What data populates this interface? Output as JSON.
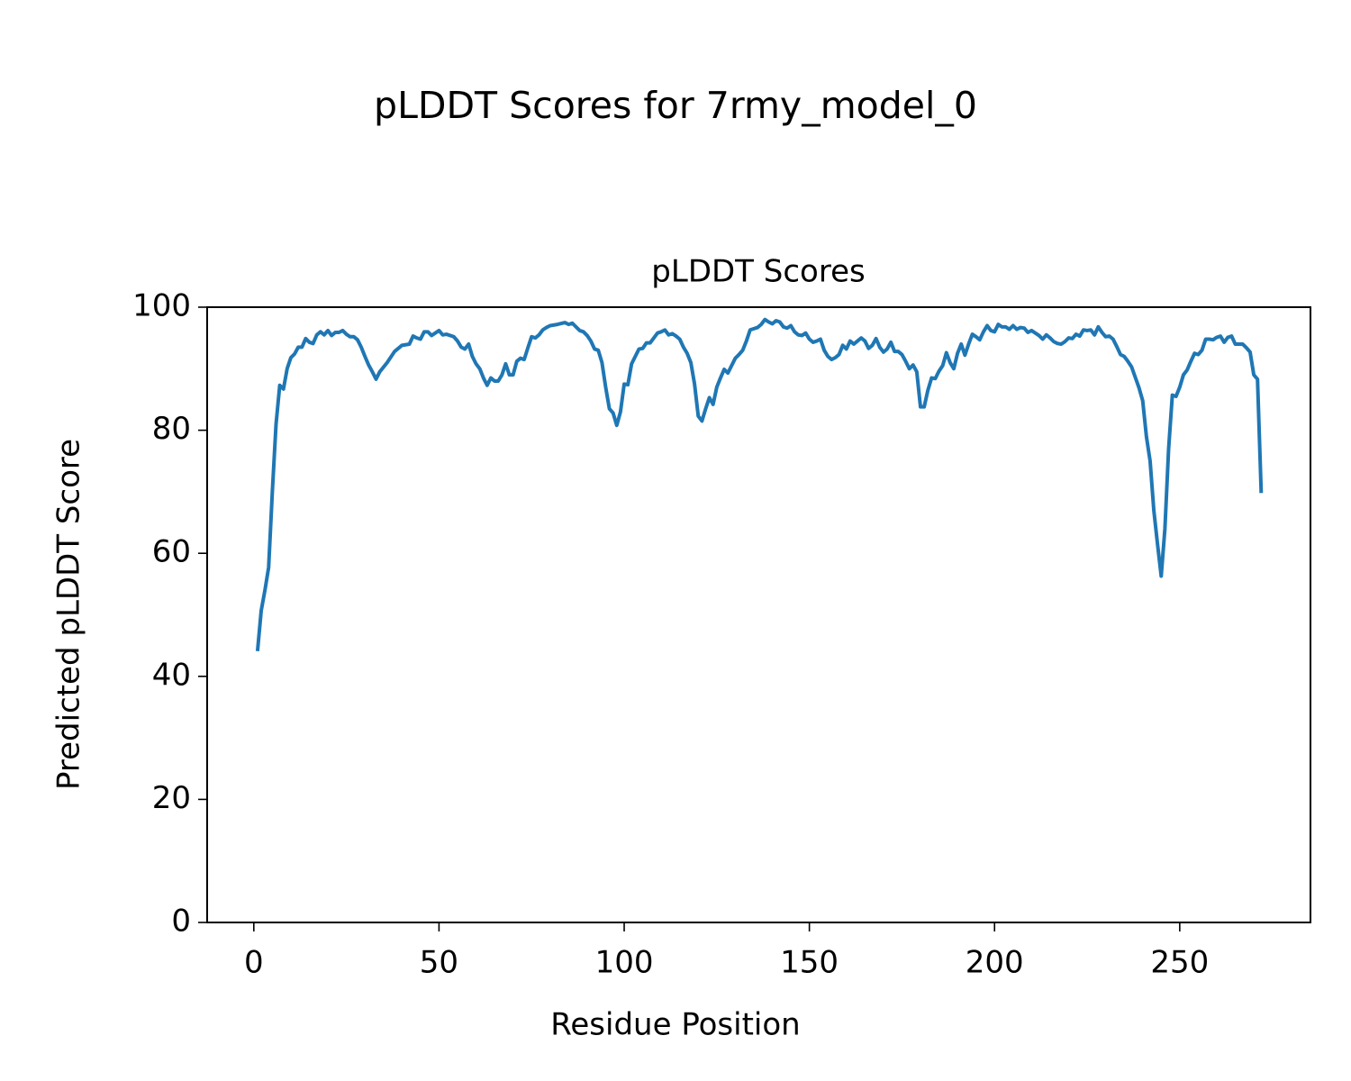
{
  "chart_data": {
    "type": "line",
    "suptitle": "pLDDT Scores for 7rmy_model_0",
    "title": "pLDDT Scores",
    "xlabel": "Residue Position",
    "ylabel": "Predicted pLDDT Score",
    "xlim": [
      -12.6,
      285.3
    ],
    "ylim": [
      0,
      100
    ],
    "xticks": [
      0,
      50,
      100,
      150,
      200,
      250
    ],
    "yticks": [
      0,
      20,
      40,
      60,
      80,
      100
    ],
    "grid": false,
    "series": [
      {
        "name": "pLDDT",
        "color": "#1f77b4",
        "x": [
          1,
          2,
          3,
          4,
          5,
          6,
          7,
          8,
          9,
          10,
          11,
          12,
          13,
          14,
          15,
          16,
          17,
          18,
          19,
          20,
          21,
          22,
          23,
          24,
          25,
          26,
          27,
          28,
          29,
          30,
          31,
          32,
          33,
          34,
          36,
          38,
          40,
          42,
          43,
          44,
          45,
          46,
          47,
          48,
          49,
          50,
          51,
          52,
          54,
          55,
          56,
          57,
          58,
          59,
          60,
          61,
          62,
          63,
          64,
          65,
          66,
          67,
          68,
          69,
          70,
          71,
          72,
          73,
          74,
          75,
          76,
          77,
          78,
          79,
          80,
          82,
          84,
          85,
          86,
          87,
          88,
          89,
          90,
          91,
          92,
          93,
          94,
          95,
          96,
          97,
          98,
          99,
          100,
          101,
          102,
          103,
          104,
          105,
          106,
          107,
          108,
          109,
          110,
          111,
          112,
          113,
          114,
          115,
          116,
          117,
          118,
          119,
          120,
          121,
          122,
          123,
          124,
          125,
          126,
          127,
          128,
          129,
          130,
          131,
          132,
          133,
          134,
          135,
          136,
          137,
          138,
          139,
          140,
          141,
          142,
          143,
          144,
          145,
          146,
          147,
          148,
          149,
          150,
          151,
          152,
          153,
          154,
          155,
          156,
          157,
          158,
          159,
          160,
          161,
          162,
          163,
          164,
          165,
          166,
          167,
          168,
          169,
          170,
          171,
          172,
          173,
          174,
          175,
          176,
          177,
          178,
          179,
          180,
          181,
          182,
          183,
          184,
          185,
          186,
          187,
          188,
          189,
          190,
          191,
          192,
          193,
          194,
          195,
          196,
          197,
          198,
          199,
          200,
          201,
          202,
          203,
          204,
          205,
          206,
          207,
          208,
          209,
          210,
          211,
          212,
          213,
          214,
          215,
          216,
          217,
          218,
          219,
          220,
          221,
          222,
          223,
          224,
          225,
          226,
          227,
          228,
          229,
          230,
          231,
          232,
          233,
          234,
          235,
          236,
          237,
          238,
          239,
          240,
          241,
          242,
          243,
          244,
          245,
          246,
          247,
          248,
          249,
          250,
          251,
          252,
          253,
          254,
          255,
          256,
          257,
          258,
          259,
          260,
          261,
          262,
          263,
          264,
          265,
          266,
          267,
          268,
          269,
          270,
          271,
          272
        ],
        "values": [
          44.1,
          50.7,
          54,
          57.7,
          70,
          81,
          87.3,
          86.7,
          90,
          91.8,
          92.4,
          93.5,
          93.5,
          94.9,
          94.3,
          94.1,
          95.5,
          96,
          95.5,
          96.2,
          95.4,
          95.9,
          95.9,
          96.2,
          95.6,
          95.2,
          95.2,
          94.7,
          93.5,
          92,
          90.6,
          89.5,
          88.3,
          89.5,
          91,
          92.8,
          93.8,
          94,
          95.3,
          95,
          94.8,
          96,
          96,
          95.4,
          95.8,
          96.2,
          95.5,
          95.6,
          95.2,
          94.5,
          93.5,
          93.2,
          94,
          92,
          90.8,
          90,
          88.5,
          87.3,
          88.5,
          88,
          88,
          89,
          90.8,
          89,
          89,
          91.2,
          91.7,
          91.5,
          93.4,
          95.2,
          95,
          95.5,
          96.3,
          96.7,
          97,
          97.2,
          97.5,
          97.2,
          97.4,
          96.8,
          96.2,
          96,
          95.4,
          94.5,
          93.2,
          93,
          91,
          87,
          83.5,
          82.8,
          80.8,
          83,
          87.5,
          87.4,
          90.8,
          92,
          93.2,
          93.3,
          94.2,
          94.2,
          95,
          95.8,
          96,
          96.3,
          95.5,
          95.7,
          95.3,
          94.8,
          93.5,
          92.5,
          91,
          87.5,
          82.3,
          81.5,
          83.5,
          85.3,
          84.2,
          87,
          88.5,
          89.9,
          89.3,
          90.5,
          91.7,
          92.3,
          93,
          94.5,
          96.3,
          96.5,
          96.7,
          97.2,
          98,
          97.6,
          97.3,
          97.8,
          97.6,
          96.8,
          96.6,
          97,
          96,
          95.5,
          95.4,
          95.8,
          94.8,
          94.3,
          94.5,
          94.8,
          93,
          92,
          91.5,
          91.8,
          92.3,
          93.8,
          93.2,
          94.5,
          94,
          94.5,
          95,
          94.5,
          93.3,
          93.8,
          94.9,
          93.5,
          92.7,
          93.2,
          94.3,
          92.8,
          92.8,
          92.3,
          91.2,
          90,
          90.6,
          89.5,
          83.8,
          83.8,
          86.5,
          88.5,
          88.4,
          89.6,
          90.5,
          92.6,
          91,
          90,
          92.5,
          94,
          92.2,
          94,
          95.6,
          95.2,
          94.7,
          96,
          97,
          96.2,
          96,
          97.2,
          96.8,
          96.8,
          96.4,
          97,
          96.4,
          96.7,
          96.6,
          95.9,
          96.2,
          95.8,
          95.4,
          94.8,
          95.5,
          95,
          94.4,
          94.1,
          94,
          94.4,
          95,
          94.9,
          95.6,
          95.3,
          96.3,
          96.2,
          96.3,
          95.5,
          96.8,
          95.9,
          95.2,
          95.3,
          94.8,
          93.6,
          92.3,
          92,
          91.2,
          90.3,
          88.6,
          86.9,
          84.8,
          79,
          75,
          67,
          61.5,
          56.3,
          64,
          77,
          85.7,
          85.5,
          87,
          89,
          89.8,
          91.2,
          92.5,
          92.3,
          93,
          94.8,
          94.8,
          94.7,
          95.1,
          95.3,
          94.3,
          95.1,
          95.3,
          94,
          94,
          94,
          93.4,
          92.7,
          89,
          88.3,
          69.8
        ]
      }
    ]
  }
}
